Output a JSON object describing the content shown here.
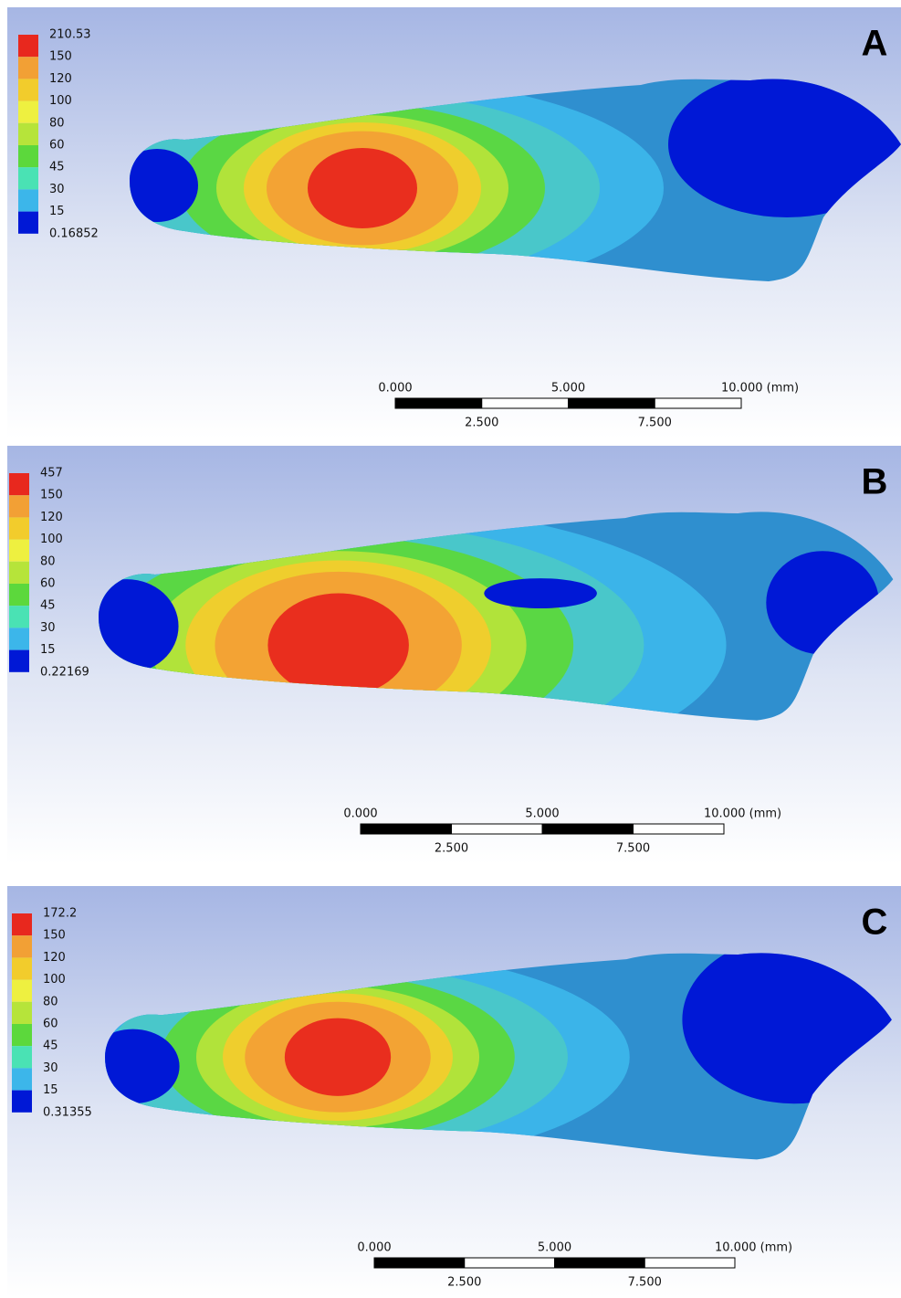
{
  "panels": [
    {
      "label": "A",
      "legend": [
        "210.53",
        "150",
        "120",
        "100",
        "80",
        "60",
        "45",
        "30",
        "15",
        "0.16852"
      ],
      "scale": {
        "top": [
          "0.000",
          "5.000",
          "10.000 (mm)"
        ],
        "bottom": [
          "2.500",
          "7.500"
        ]
      }
    },
    {
      "label": "B",
      "legend": [
        "457",
        "150",
        "120",
        "100",
        "80",
        "60",
        "45",
        "30",
        "15",
        "0.22169"
      ],
      "scale": {
        "top": [
          "0.000",
          "5.000",
          "10.000 (mm)"
        ],
        "bottom": [
          "2.500",
          "7.500"
        ]
      }
    },
    {
      "label": "C",
      "legend": [
        "172.2",
        "150",
        "120",
        "100",
        "80",
        "60",
        "45",
        "30",
        "15",
        "0.31355"
      ],
      "scale": {
        "top": [
          "0.000",
          "5.000",
          "10.000 (mm)"
        ],
        "bottom": [
          "2.500",
          "7.500"
        ]
      }
    }
  ]
}
